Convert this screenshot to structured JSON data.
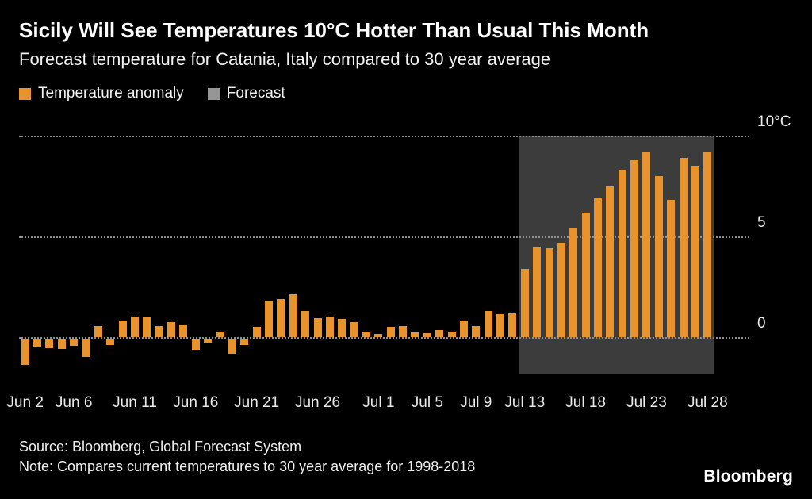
{
  "chart_data": {
    "type": "bar",
    "title": "Sicily Will See Temperatures 10°C Hotter Than Usual This Month",
    "subtitle": "Forecast temperature for Catania, Italy compared to 30 year average",
    "unit": "°C",
    "legend": [
      {
        "label": "Temperature anomaly",
        "color": "#E8932C"
      },
      {
        "label": "Forecast",
        "color": "#969696"
      }
    ],
    "legend_position": "top-left",
    "grid": true,
    "background": "#000000",
    "bar_color": "#E8932C",
    "ylim": [
      -2,
      10
    ],
    "yticks": [
      {
        "value": 10,
        "label": "10°C"
      },
      {
        "value": 5,
        "label": "5"
      },
      {
        "value": 0,
        "label": "0"
      }
    ],
    "categories": [
      "Jun 2",
      "Jun 3",
      "Jun 4",
      "Jun 5",
      "Jun 6",
      "Jun 7",
      "Jun 8",
      "Jun 9",
      "Jun 10",
      "Jun 11",
      "Jun 12",
      "Jun 13",
      "Jun 14",
      "Jun 15",
      "Jun 16",
      "Jun 17",
      "Jun 18",
      "Jun 19",
      "Jun 20",
      "Jun 21",
      "Jun 22",
      "Jun 23",
      "Jun 24",
      "Jun 25",
      "Jun 26",
      "Jun 27",
      "Jun 28",
      "Jun 29",
      "Jun 30",
      "Jul 1",
      "Jul 2",
      "Jul 3",
      "Jul 4",
      "Jul 5",
      "Jul 6",
      "Jul 7",
      "Jul 8",
      "Jul 9",
      "Jul 10",
      "Jul 11",
      "Jul 12",
      "Jul 13",
      "Jul 14",
      "Jul 15",
      "Jul 16",
      "Jul 17",
      "Jul 18",
      "Jul 19",
      "Jul 20",
      "Jul 21",
      "Jul 22",
      "Jul 23",
      "Jul 24",
      "Jul 25",
      "Jul 26",
      "Jul 27",
      "Jul 28"
    ],
    "values": [
      -1.3,
      -0.4,
      -0.45,
      -0.5,
      -0.35,
      -0.9,
      0.55,
      -0.3,
      0.85,
      1.05,
      1.0,
      0.55,
      0.75,
      0.6,
      -0.55,
      -0.2,
      0.3,
      -0.75,
      -0.3,
      0.5,
      1.8,
      1.9,
      2.15,
      1.3,
      0.95,
      1.05,
      0.9,
      0.75,
      0.3,
      0.15,
      0.5,
      0.55,
      0.25,
      0.2,
      0.35,
      0.3,
      0.85,
      0.55,
      1.3,
      1.15,
      1.2,
      3.4,
      4.5,
      4.4,
      4.7,
      5.4,
      6.2,
      6.9,
      7.5,
      8.3,
      8.8,
      9.2,
      8.0,
      6.8,
      8.9,
      8.5,
      9.2
    ],
    "xticks": [
      {
        "index": 0,
        "label": "Jun 2"
      },
      {
        "index": 4,
        "label": "Jun 6"
      },
      {
        "index": 9,
        "label": "Jun 11"
      },
      {
        "index": 14,
        "label": "Jun 16"
      },
      {
        "index": 19,
        "label": "Jun 21"
      },
      {
        "index": 24,
        "label": "Jun 26"
      },
      {
        "index": 29,
        "label": "Jul 1"
      },
      {
        "index": 33,
        "label": "Jul 5"
      },
      {
        "index": 37,
        "label": "Jul 9"
      },
      {
        "index": 41,
        "label": "Jul 13"
      },
      {
        "index": 46,
        "label": "Jul 18"
      },
      {
        "index": 51,
        "label": "Jul 23"
      },
      {
        "index": 56,
        "label": "Jul 28"
      }
    ],
    "forecast_start_index": 41,
    "forecast_band": {
      "color": "#3C3C3C",
      "value_top": 10,
      "value_bottom": -1.85
    }
  },
  "footer": {
    "source": "Source: Bloomberg, Global Forecast System",
    "note": "Note: Compares current temperatures to 30 year average for 1998-2018",
    "brand": "Bloomberg"
  }
}
